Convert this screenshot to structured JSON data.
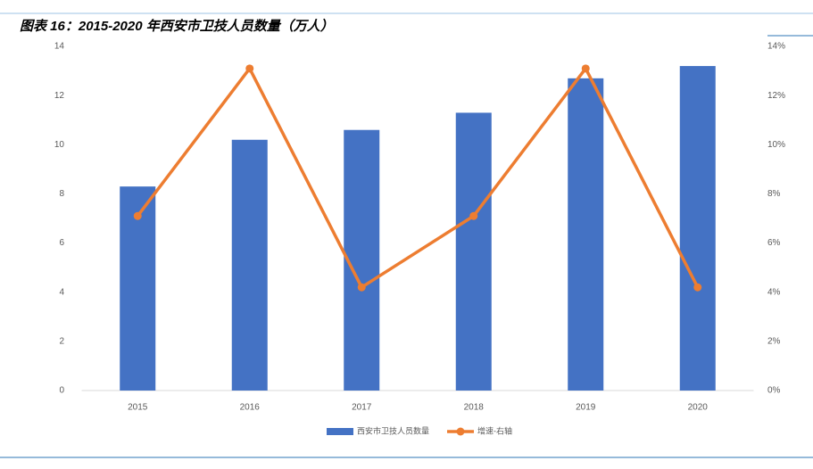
{
  "chart_data": {
    "type": "bar_line",
    "title": "图表 16：2015-2020 年西安市卫技人员数量（万人）",
    "categories": [
      "2015",
      "2016",
      "2017",
      "2018",
      "2019",
      "2020"
    ],
    "series": [
      {
        "name": "西安市卫技人员数量",
        "type": "bar",
        "color": "#4472c4",
        "values": [
          8.3,
          10.2,
          10.6,
          11.3,
          12.7,
          13.2
        ]
      },
      {
        "name": "增速-右轴",
        "type": "line",
        "axis": "y2",
        "color": "#ed7d31",
        "values": [
          7.1,
          13.1,
          4.2,
          7.1,
          13.1,
          4.2
        ]
      }
    ],
    "ylim": [
      0,
      14
    ],
    "yticks": [
      0,
      2,
      4,
      6,
      8,
      10,
      12,
      14
    ],
    "y2lim": [
      0,
      14
    ],
    "y2ticks": [
      {
        "value": 0,
        "label": "0%"
      },
      {
        "value": 2,
        "label": "2%"
      },
      {
        "value": 4,
        "label": "4%"
      },
      {
        "value": 6,
        "label": "6%"
      },
      {
        "value": 8,
        "label": "8%"
      },
      {
        "value": 10,
        "label": "10%"
      },
      {
        "value": 12,
        "label": "12%"
      },
      {
        "value": 14,
        "label": "14%"
      }
    ]
  }
}
